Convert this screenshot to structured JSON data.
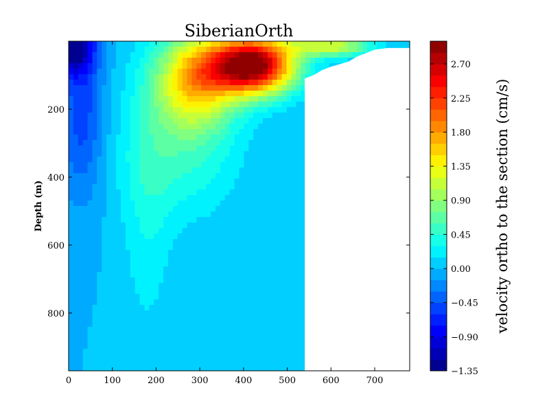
{
  "chart_data": {
    "type": "contourf",
    "title": "SiberianOrth",
    "xlabel": "",
    "ylabel": "Depth (m)",
    "xlim": [
      0,
      780
    ],
    "ylim": [
      970,
      0
    ],
    "x_ticks": [
      0,
      100,
      200,
      300,
      400,
      500,
      600,
      700
    ],
    "y_ticks": [
      200,
      400,
      600,
      800
    ],
    "colorbar": {
      "label": "velocity ortho to the section (cm/s)",
      "min": -1.35,
      "max": 2.7,
      "tick_values": [
        -1.35,
        -0.9,
        -0.45,
        0.0,
        0.45,
        0.9,
        1.35,
        1.8,
        2.25,
        2.7
      ],
      "tick_labels": [
        "−1.35",
        "−0.90",
        "−0.45",
        "0.00",
        "0.45",
        "0.90",
        "1.35",
        "1.80",
        "2.25",
        "2.70"
      ],
      "levels": [
        -1.35,
        -1.2,
        -1.05,
        -0.9,
        -0.75,
        -0.6,
        -0.45,
        -0.3,
        -0.15,
        0.0,
        0.15,
        0.3,
        0.45,
        0.6,
        0.75,
        0.9,
        1.05,
        1.2,
        1.35,
        1.5,
        1.65,
        1.8,
        1.95,
        2.1,
        2.25,
        2.4,
        2.55,
        2.7,
        2.85,
        3.0
      ]
    },
    "bathymetry": {
      "distance_km": [
        0,
        540,
        540,
        560,
        580,
        600,
        640,
        660,
        700,
        730,
        780
      ],
      "bottom_depth_m": [
        970,
        970,
        110,
        100,
        85,
        75,
        60,
        45,
        25,
        20,
        20
      ]
    },
    "field_summary": {
      "core_max_velocity": 3.0,
      "core_distance_range_km": [
        320,
        500
      ],
      "core_depth_range_m": [
        10,
        150
      ],
      "min_velocity": -1.3,
      "min_location": "western edge, near surface"
    }
  }
}
